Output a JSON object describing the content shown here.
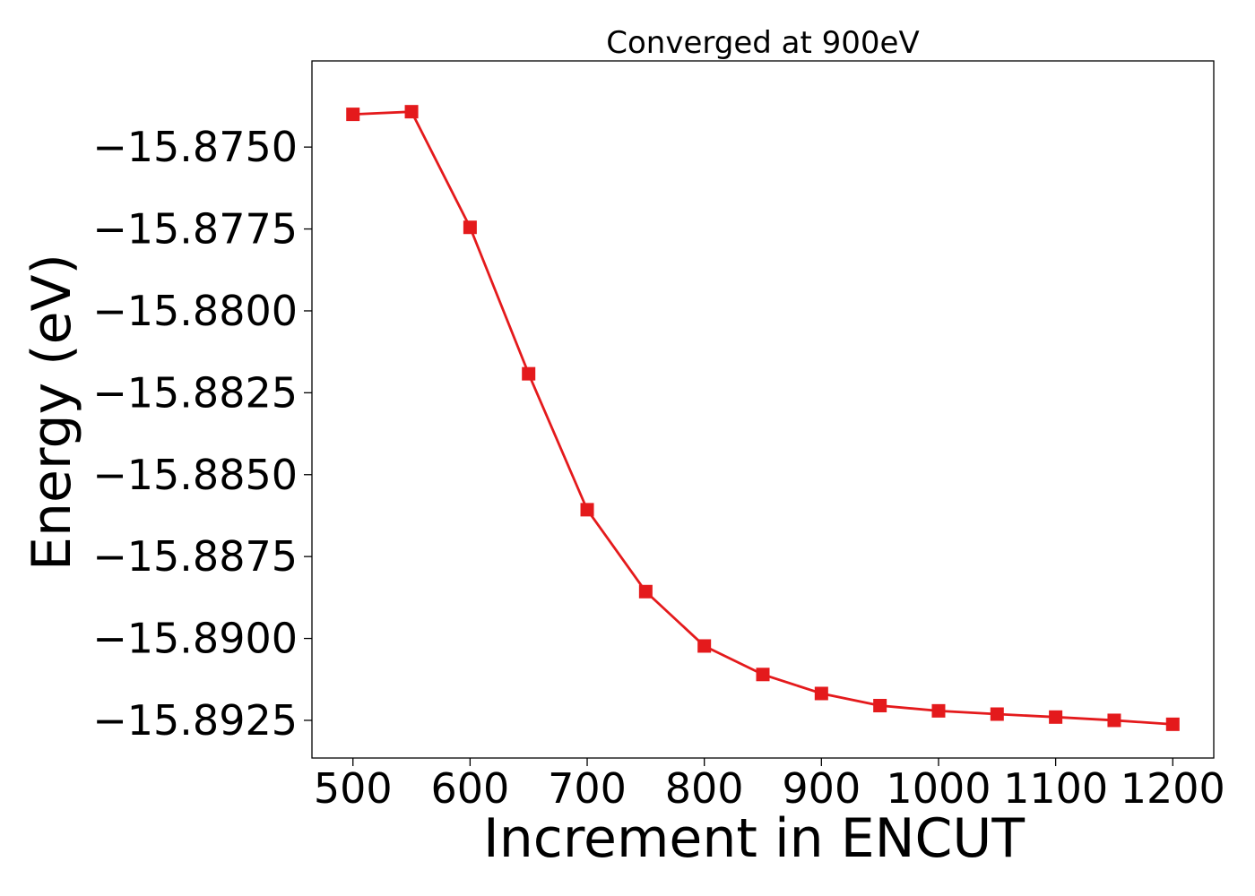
{
  "chart_data": {
    "type": "line",
    "title": "Converged at 900eV",
    "xlabel": "Increment in ENCUT",
    "ylabel": "Energy (eV)",
    "xlim": [
      465,
      1235
    ],
    "ylim": [
      -15.89365,
      -15.87237
    ],
    "x_ticks": [
      500,
      600,
      700,
      800,
      900,
      1000,
      1100,
      1200
    ],
    "x_tick_labels": [
      "500",
      "600",
      "700",
      "800",
      "900",
      "1000",
      "1100",
      "1200"
    ],
    "y_ticks": [
      -15.875,
      -15.8775,
      -15.88,
      -15.8825,
      -15.885,
      -15.8875,
      -15.89,
      -15.8925
    ],
    "y_tick_labels": [
      "−15.8750",
      "−15.8775",
      "−15.8800",
      "−15.8825",
      "−15.8850",
      "−15.8875",
      "−15.8900",
      "−15.8925"
    ],
    "grid": false,
    "legend": "none",
    "series": [
      {
        "color": "#e41a1c",
        "marker": "square",
        "x": [
          500,
          550,
          600,
          650,
          700,
          750,
          800,
          850,
          900,
          950,
          1000,
          1050,
          1100,
          1150,
          1200
        ],
        "y": [
          -15.874,
          -15.87392,
          -15.87745,
          -15.88192,
          -15.88607,
          -15.88857,
          -15.89023,
          -15.8911,
          -15.89168,
          -15.89205,
          -15.89221,
          -15.89231,
          -15.8924,
          -15.8925,
          -15.89262
        ]
      }
    ]
  }
}
